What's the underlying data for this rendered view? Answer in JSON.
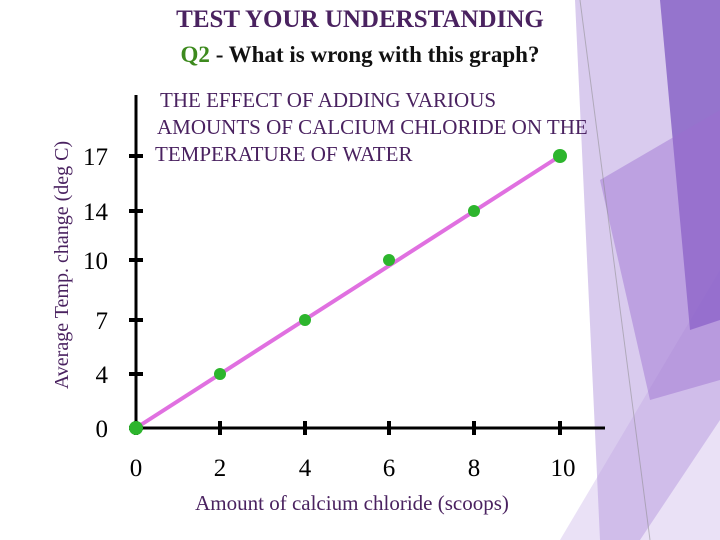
{
  "slide": {
    "heading": "TEST YOUR UNDERSTANDING",
    "question_number": "Q2",
    "question_text": " - What is wrong with this graph?",
    "accent_color": "#3d8a1e",
    "heading_color": "#4a2260",
    "decor_colors": [
      "#7e57c2",
      "#9c6fd0",
      "#b9a0e0",
      "#e6dcf5"
    ]
  },
  "chart_data": {
    "type": "scatter",
    "title": "THE EFFECT OF ADDING VARIOUS AMOUNTS OF CALCIUM CHLORIDE ON THE TEMPERATURE OF WATER",
    "title_lines": [
      "THE EFFECT OF ADDING VARIOUS",
      "AMOUNTS OF CALCIUM CHLORIDE ON THE",
      "TEMPERATURE OF WATER"
    ],
    "xlabel": "Amount of calcium chloride (scoops)",
    "ylabel": "Average Temp. change (deg C)",
    "x_ticks": [
      "0",
      "2",
      "4",
      "6",
      "8",
      "10"
    ],
    "y_ticks": [
      "0",
      "4",
      "7",
      "10",
      "14",
      "17"
    ],
    "points": [
      {
        "x": 0,
        "y": 0
      },
      {
        "x": 2,
        "y": 4
      },
      {
        "x": 4,
        "y": 7
      },
      {
        "x": 6,
        "y": 10
      },
      {
        "x": 8,
        "y": 14
      },
      {
        "x": 10,
        "y": 17
      }
    ],
    "trend_line": {
      "x": [
        0,
        10
      ],
      "y": [
        0,
        17
      ]
    },
    "marker_color": "#2db52d",
    "line_color": "#e070e0",
    "axis_color": "#000000",
    "grid": false,
    "legend": false
  }
}
